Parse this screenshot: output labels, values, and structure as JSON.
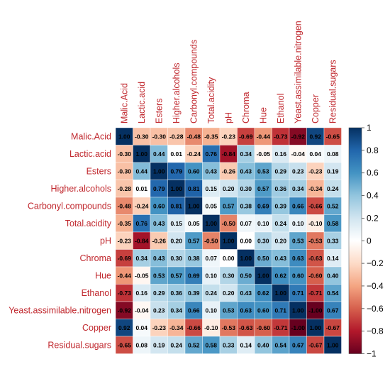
{
  "chart_data": {
    "type": "heatmap",
    "title": "",
    "variables": [
      "Malic.Acid",
      "Lactic.acid",
      "Esters",
      "Higher.alcohols",
      "Carbonyl.compounds",
      "Total.acidity",
      "pH",
      "Chroma",
      "Hue",
      "Ethanol",
      "Yeast.assimilable.nitrogen",
      "Copper",
      "Residual.sugars"
    ],
    "matrix": [
      [
        1.0,
        -0.3,
        -0.3,
        -0.28,
        -0.48,
        -0.35,
        -0.23,
        -0.69,
        -0.44,
        -0.73,
        -0.92,
        0.92,
        -0.65
      ],
      [
        -0.3,
        1.0,
        0.44,
        0.01,
        -0.24,
        0.76,
        -0.84,
        0.34,
        -0.05,
        0.16,
        -0.04,
        0.04,
        0.08
      ],
      [
        -0.3,
        0.44,
        1.0,
        0.79,
        0.6,
        0.43,
        -0.26,
        0.43,
        0.53,
        0.29,
        0.23,
        -0.23,
        0.19
      ],
      [
        -0.28,
        0.01,
        0.79,
        1.0,
        0.81,
        0.15,
        0.2,
        0.3,
        0.57,
        0.36,
        0.34,
        -0.34,
        0.24
      ],
      [
        -0.48,
        -0.24,
        0.6,
        0.81,
        1.0,
        0.05,
        0.57,
        0.38,
        0.69,
        0.39,
        0.66,
        -0.66,
        0.52
      ],
      [
        -0.35,
        0.76,
        0.43,
        0.15,
        0.05,
        1.0,
        -0.5,
        0.07,
        0.1,
        0.24,
        0.1,
        -0.1,
        0.58
      ],
      [
        -0.23,
        -0.84,
        -0.26,
        0.2,
        0.57,
        -0.5,
        1.0,
        0.0,
        0.3,
        0.2,
        0.53,
        -0.53,
        0.33
      ],
      [
        -0.69,
        0.34,
        0.43,
        0.3,
        0.38,
        0.07,
        0.0,
        1.0,
        0.5,
        0.43,
        0.63,
        -0.63,
        0.14
      ],
      [
        -0.44,
        -0.05,
        0.53,
        0.57,
        0.69,
        0.1,
        0.3,
        0.5,
        1.0,
        0.62,
        0.6,
        -0.6,
        0.4
      ],
      [
        -0.73,
        0.16,
        0.29,
        0.36,
        0.39,
        0.24,
        0.2,
        0.43,
        0.62,
        1.0,
        0.71,
        -0.71,
        0.54
      ],
      [
        -0.92,
        -0.04,
        0.23,
        0.34,
        0.66,
        0.1,
        0.53,
        0.63,
        0.6,
        0.71,
        1.0,
        -1.0,
        0.67
      ],
      [
        0.92,
        0.04,
        -0.23,
        -0.34,
        -0.66,
        -0.1,
        -0.53,
        -0.63,
        -0.6,
        -0.71,
        -1.0,
        1.0,
        -0.67
      ],
      [
        -0.65,
        0.08,
        0.19,
        0.24,
        0.52,
        0.58,
        0.33,
        0.14,
        0.4,
        0.54,
        0.67,
        -0.67,
        1.0
      ]
    ],
    "value_range": [
      -1,
      1
    ],
    "colorbar": {
      "ticks": [
        1,
        0.8,
        0.6,
        0.4,
        0.2,
        0,
        -0.2,
        -0.4,
        -0.6,
        -0.8,
        -1
      ],
      "tick_labels": [
        "1",
        "0.8",
        "0.6",
        "0.4",
        "0.2",
        "0",
        "−0.2",
        "−0.4",
        "−0.6",
        "−0.8",
        "−1"
      ],
      "placement": "right"
    },
    "colors": {
      "negative_end": "#67001f",
      "positive_end": "#053061",
      "label_color": "#c0272d",
      "value_text": "#000000"
    }
  }
}
